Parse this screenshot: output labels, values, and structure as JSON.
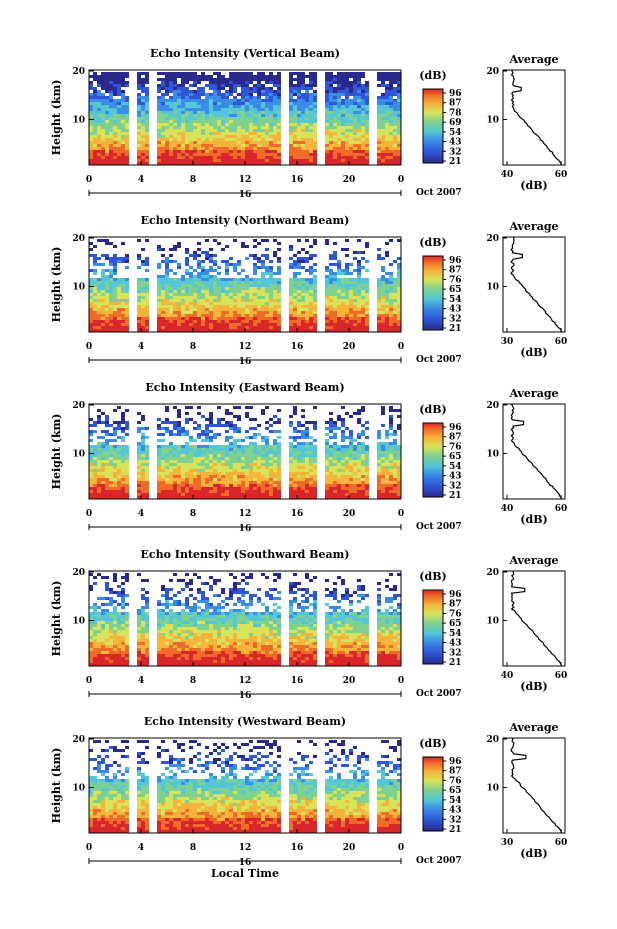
{
  "chart_data": [
    {
      "type": "heatmap",
      "title": "Echo Intensity (Vertical Beam)",
      "ylabel": "Height (km)",
      "y_ticks": [
        "20",
        "10"
      ],
      "x_ticks": [
        "0",
        "4",
        "8",
        "12",
        "16",
        "20",
        "0"
      ],
      "date_label": "16",
      "month_label": "Oct 2007",
      "colorbar": {
        "unit": "(dB)",
        "ticks": [
          "96",
          "87",
          "78",
          "69",
          "54",
          "43",
          "32",
          "21"
        ]
      },
      "average": {
        "title": "Average",
        "xlabel": "(dB)",
        "x_ticks": [
          "40",
          "60"
        ],
        "y_ticks": [
          "20",
          "10"
        ]
      }
    },
    {
      "type": "heatmap",
      "title": "Echo Intensity (Northward Beam)",
      "ylabel": "Height (km)",
      "y_ticks": [
        "20",
        "10"
      ],
      "x_ticks": [
        "0",
        "4",
        "8",
        "12",
        "16",
        "20",
        "0"
      ],
      "date_label": "16",
      "month_label": "Oct 2007",
      "colorbar": {
        "unit": "(dB)",
        "ticks": [
          "96",
          "87",
          "76",
          "65",
          "54",
          "43",
          "32",
          "21"
        ]
      },
      "average": {
        "title": "Average",
        "xlabel": "(dB)",
        "x_ticks": [
          "30",
          "60"
        ],
        "y_ticks": [
          "20",
          "10"
        ]
      }
    },
    {
      "type": "heatmap",
      "title": "Echo Intensity (Eastward Beam)",
      "ylabel": "Height (km)",
      "y_ticks": [
        "20",
        "10"
      ],
      "x_ticks": [
        "0",
        "4",
        "8",
        "12",
        "16",
        "20",
        "0"
      ],
      "date_label": "16",
      "month_label": "Oct 2007",
      "colorbar": {
        "unit": "(dB)",
        "ticks": [
          "96",
          "87",
          "76",
          "65",
          "54",
          "43",
          "32",
          "21"
        ]
      },
      "average": {
        "title": "Average",
        "xlabel": "(dB)",
        "x_ticks": [
          "40",
          "60"
        ],
        "y_ticks": [
          "20",
          "10"
        ]
      }
    },
    {
      "type": "heatmap",
      "title": "Echo Intensity (Southward Beam)",
      "ylabel": "Height (km)",
      "y_ticks": [
        "20",
        "10"
      ],
      "x_ticks": [
        "0",
        "4",
        "8",
        "12",
        "16",
        "20",
        "0"
      ],
      "date_label": "16",
      "month_label": "Oct 2007",
      "colorbar": {
        "unit": "(dB)",
        "ticks": [
          "96",
          "87",
          "76",
          "65",
          "54",
          "43",
          "32",
          "21"
        ]
      },
      "average": {
        "title": "Average",
        "xlabel": "(dB)",
        "x_ticks": [
          "40",
          "60"
        ],
        "y_ticks": [
          "20",
          "10"
        ]
      }
    },
    {
      "type": "heatmap",
      "title": "Echo Intensity (Westward Beam)",
      "ylabel": "Height (km)",
      "y_ticks": [
        "20",
        "10"
      ],
      "x_ticks": [
        "0",
        "4",
        "8",
        "12",
        "16",
        "20",
        "0"
      ],
      "date_label": "16",
      "month_label": "Oct 2007",
      "xlabel": "Local Time",
      "colorbar": {
        "unit": "(dB)",
        "ticks": [
          "96",
          "87",
          "76",
          "65",
          "54",
          "43",
          "32",
          "21"
        ]
      },
      "average": {
        "title": "Average",
        "xlabel": "(dB)",
        "x_ticks": [
          "30",
          "60"
        ],
        "y_ticks": [
          "20",
          "10"
        ]
      }
    }
  ]
}
